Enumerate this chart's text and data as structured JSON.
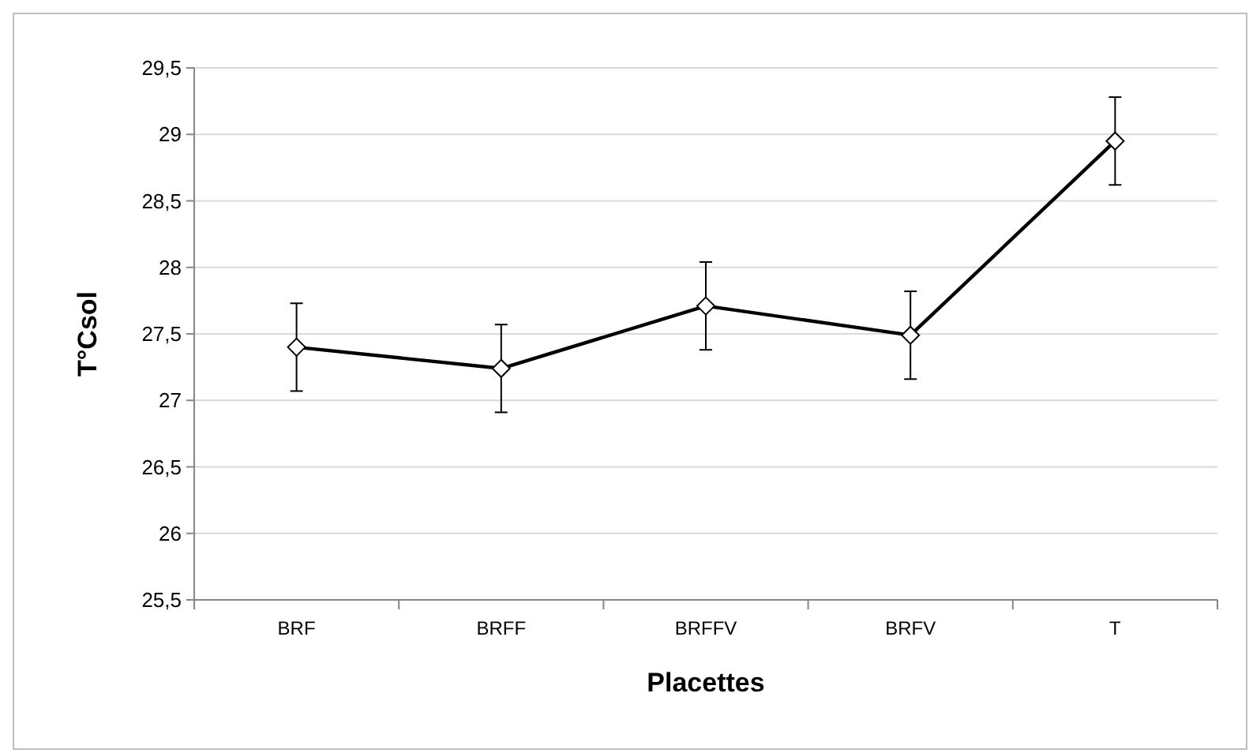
{
  "chart_data": {
    "type": "line",
    "xlabel": "Placettes",
    "ylabel": "T°Csol",
    "categories": [
      "BRF",
      "BRFF",
      "BRFFV",
      "BRFV",
      "T"
    ],
    "series": [
      {
        "color": "#000000",
        "values": [
          27.4,
          27.24,
          27.71,
          27.49,
          28.95
        ],
        "errors": [
          0.33,
          0.33,
          0.33,
          0.33,
          0.33
        ]
      }
    ],
    "ylim": [
      25.5,
      29.5
    ],
    "yticks": [
      {
        "value": 25.5,
        "label": "25,5"
      },
      26,
      {
        "value": 26.5,
        "label": "26,5"
      },
      27,
      {
        "value": 27.5,
        "label": "27,5"
      },
      28,
      {
        "value": 28.5,
        "label": "28,5"
      },
      29,
      {
        "value": 29.5,
        "label": "29,5"
      }
    ],
    "grid": "y",
    "marker": "diamond",
    "line_style": "solid"
  }
}
